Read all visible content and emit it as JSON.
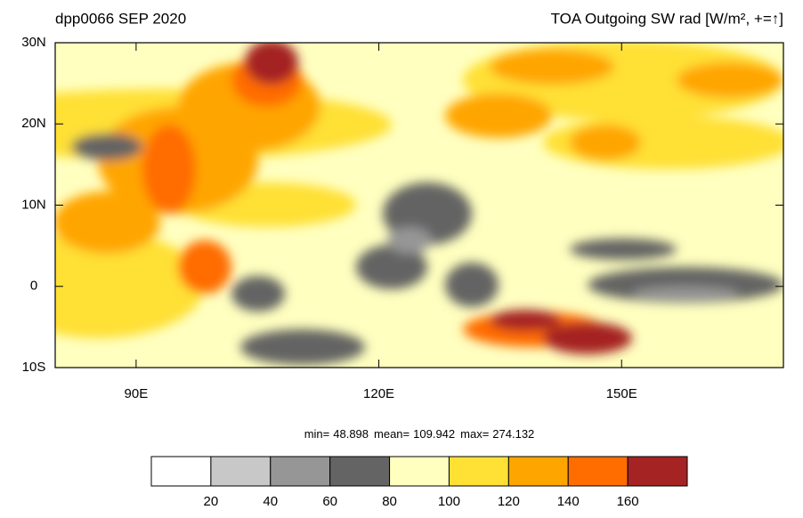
{
  "chart_data": {
    "type": "map",
    "title_left": "dpp0066 SEP 2020",
    "title_right": "TOA Outgoing SW rad [W/m², +=↑]",
    "xlim": [
      80,
      170
    ],
    "ylim": [
      -10,
      30
    ],
    "xticks": [
      {
        "value": 90,
        "label": "90E"
      },
      {
        "value": 120,
        "label": "120E"
      },
      {
        "value": 150,
        "label": "150E"
      }
    ],
    "yticks": [
      {
        "value": 30,
        "label": "30N"
      },
      {
        "value": 20,
        "label": "20N"
      },
      {
        "value": 10,
        "label": "10N"
      },
      0,
      {
        "value": -10,
        "label": "10S"
      }
    ],
    "stats": [
      {
        "label": "min=",
        "value": 48.898
      },
      {
        "label": "mean=",
        "value": 109.942
      },
      {
        "label": "max=",
        "value": 274.132
      }
    ],
    "colorbar": {
      "levels": [
        20,
        40,
        60,
        80,
        100,
        120,
        140,
        160
      ],
      "colors": [
        "#ffffff",
        "#c8c8c8",
        "#969696",
        "#646464",
        "#ffffc0",
        "#ffe034",
        "#ffa500",
        "#ff6c00",
        "#a52323"
      ]
    }
  }
}
